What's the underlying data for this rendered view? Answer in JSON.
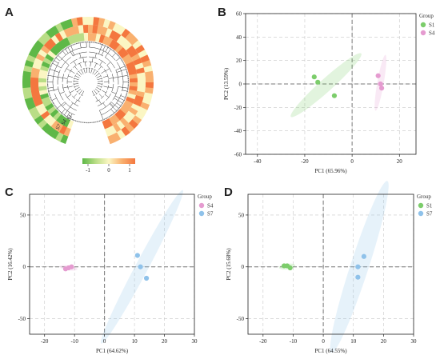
{
  "panels": {
    "A": "A",
    "B": "B",
    "C": "C",
    "D": "D"
  },
  "colors": {
    "S1": "#7ccd6b",
    "S4": "#e59bd0",
    "S7": "#8fc2ea"
  },
  "heatmap": {
    "sample_labels": [
      "S1",
      "S4",
      "S7"
    ],
    "colorbar_ticks": [
      "-1",
      "0",
      "1"
    ],
    "scale": [
      "#5fb848",
      "#b9dd86",
      "#fbf6c3",
      "#f9b06f",
      "#f4773f"
    ]
  },
  "chart_data": [
    {
      "panel": "B",
      "type": "scatter",
      "xlabel": "PC1 (65.96%)",
      "ylabel": "PC2 (13.59%)",
      "xlim": [
        -45,
        27
      ],
      "ylim": [
        -60,
        60
      ],
      "xticks": [
        -40,
        -20,
        0,
        20
      ],
      "yticks": [
        -60,
        -40,
        -20,
        0,
        20,
        40,
        60
      ],
      "legend_title": "Group",
      "legend_position": "right",
      "series": [
        {
          "name": "S1",
          "color": "#7ccd6b",
          "x": [
            -16,
            -14.5,
            -7.5
          ],
          "y": [
            6,
            1.5,
            -10
          ],
          "ellipse": {
            "cx": -11,
            "cy": -1,
            "major": 40,
            "minor": 4,
            "angle_deg": -42
          }
        },
        {
          "name": "S4",
          "color": "#e59bd0",
          "x": [
            11,
            12,
            12.5
          ],
          "y": [
            7,
            0,
            -3.5
          ],
          "ellipse": {
            "cx": 12,
            "cy": 1,
            "major": 24,
            "minor": 1.4,
            "angle_deg": -80
          }
        }
      ]
    },
    {
      "panel": "C",
      "type": "scatter",
      "xlabel": "PC1 (64.62%)",
      "ylabel": "PC2 (16.42%)",
      "xlim": [
        -25,
        30
      ],
      "ylim": [
        -65,
        70
      ],
      "xticks": [
        -20,
        -10,
        0,
        10,
        20,
        30
      ],
      "yticks": [
        -50,
        0,
        50
      ],
      "legend_title": "Group",
      "legend_position": "right",
      "series": [
        {
          "name": "S4",
          "color": "#e59bd0",
          "x": [
            -13,
            -12,
            -11
          ],
          "y": [
            -2,
            -1,
            0
          ],
          "ellipse": {
            "cx": -12,
            "cy": -1,
            "major": 6,
            "minor": 0.6,
            "angle_deg": 8
          }
        },
        {
          "name": "S7",
          "color": "#8fc2ea",
          "x": [
            11,
            12,
            14
          ],
          "y": [
            11,
            0,
            -11
          ],
          "ellipse": {
            "cx": 12.5,
            "cy": 0,
            "major": 58,
            "minor": 3.2,
            "angle_deg": -62
          }
        }
      ]
    },
    {
      "panel": "D",
      "type": "scatter",
      "xlabel": "PC1 (64.55%)",
      "ylabel": "PC2 (15.68%)",
      "xlim": [
        -25,
        30
      ],
      "ylim": [
        -65,
        70
      ],
      "xticks": [
        -20,
        -10,
        0,
        10,
        20,
        30
      ],
      "yticks": [
        -50,
        0,
        50
      ],
      "legend_title": "Group",
      "legend_position": "right",
      "series": [
        {
          "name": "S1",
          "color": "#7ccd6b",
          "x": [
            -13,
            -12,
            -11
          ],
          "y": [
            1,
            1,
            -1
          ],
          "ellipse": {
            "cx": -12,
            "cy": 0.3,
            "major": 5.5,
            "minor": 0.8,
            "angle_deg": -8
          }
        },
        {
          "name": "S7",
          "color": "#8fc2ea",
          "x": [
            13.5,
            11.5,
            11.5
          ],
          "y": [
            10,
            0,
            -10
          ],
          "ellipse": {
            "cx": 12,
            "cy": 0,
            "major": 60,
            "minor": 5,
            "angle_deg": -72
          }
        }
      ]
    }
  ]
}
